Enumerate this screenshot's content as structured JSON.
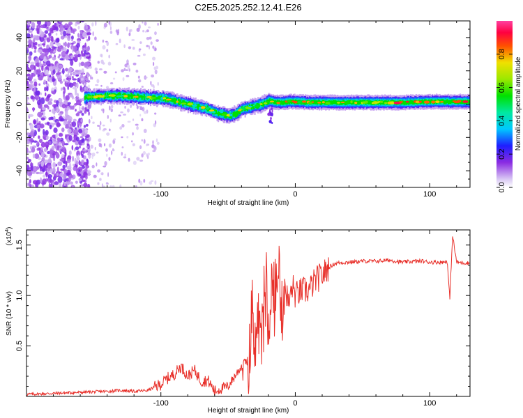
{
  "title": "C2E5.2025.252.12.41.E26",
  "chart_data": [
    {
      "type": "heatmap",
      "name": "spectrogram",
      "title": "C2E5.2025.252.12.41.E26",
      "xlabel": "Height of straight line (km)",
      "ylabel": "Frequency (Hz)",
      "xlim": [
        -200,
        130
      ],
      "ylim": [
        -50,
        50
      ],
      "x_ticks": [
        -100,
        0,
        100
      ],
      "x_tick_labels": [
        "-100",
        "0",
        "100"
      ],
      "y_ticks": [
        -40,
        -20,
        0,
        20,
        40
      ],
      "y_tick_labels": [
        "-40",
        "-20",
        "0",
        "20",
        "40"
      ],
      "signal_start_x": -157,
      "ridge": {
        "x": [
          -157,
          -150,
          -140,
          -130,
          -120,
          -110,
          -100,
          -95,
          -90,
          -85,
          -80,
          -75,
          -70,
          -65,
          -60,
          -55,
          -50,
          -45,
          -40,
          -35,
          -30,
          -25,
          -22,
          -20,
          -15,
          -10,
          -5,
          0,
          10,
          20,
          40,
          60,
          80,
          100,
          115,
          130
        ],
        "freq": [
          4,
          4.5,
          5,
          5,
          4.5,
          4,
          3.5,
          3,
          2,
          1,
          0,
          -1,
          -2,
          -3,
          -5,
          -6,
          -7,
          -6,
          -3,
          -2,
          -1,
          0,
          1,
          2,
          1,
          1,
          1.5,
          1.5,
          1,
          1,
          1,
          1,
          1,
          1.5,
          1.5,
          1.5
        ]
      },
      "colorbar": {
        "label": "Normalized spectral amplitude",
        "min": 0.0,
        "max": 1.0,
        "ticks": [
          0.0,
          0.2,
          0.4,
          0.6,
          0.8
        ],
        "tick_labels": [
          "0.0",
          "0.2",
          "0.4",
          "0.6",
          "0.8"
        ]
      }
    },
    {
      "type": "line",
      "name": "snr",
      "xlabel": "Height of straight line (km)",
      "ylabel": "SNR (10 * v/v)",
      "y_multiplier": "(x10",
      "y_multiplier_exp": "4",
      "y_multiplier_close": ")",
      "xlim": [
        -200,
        130
      ],
      "ylim": [
        0,
        1.65
      ],
      "x_ticks": [
        -100,
        0,
        100
      ],
      "x_tick_labels": [
        "-100",
        "0",
        "100"
      ],
      "y_ticks": [
        0.5,
        1.0,
        1.5
      ],
      "y_tick_labels": [
        "0.5",
        "1.0",
        "1.5"
      ],
      "series": [
        {
          "name": "SNR",
          "color": "#e8302a",
          "x": [
            -200,
            -180,
            -160,
            -140,
            -130,
            -120,
            -110,
            -100,
            -95,
            -90,
            -85,
            -80,
            -75,
            -70,
            -65,
            -60,
            -55,
            -50,
            -45,
            -40,
            -35,
            -32,
            -30,
            -28,
            -25,
            -22,
            -20,
            -18,
            -15,
            -12,
            -10,
            -8,
            -5,
            -2,
            0,
            5,
            10,
            15,
            20,
            25,
            30,
            40,
            50,
            60,
            70,
            80,
            90,
            95,
            100,
            110,
            113,
            115,
            117,
            120,
            130
          ],
          "y": [
            0.02,
            0.03,
            0.04,
            0.05,
            0.06,
            0.05,
            0.06,
            0.12,
            0.18,
            0.22,
            0.3,
            0.2,
            0.26,
            0.15,
            0.16,
            0.05,
            0.08,
            0.1,
            0.2,
            0.3,
            0.35,
            0.6,
            0.45,
            0.8,
            0.5,
            1.0,
            0.7,
            1.1,
            0.9,
            1.3,
            0.8,
            1.15,
            0.9,
            1.1,
            1.0,
            1.05,
            1.05,
            1.15,
            1.2,
            1.28,
            1.32,
            1.33,
            1.34,
            1.34,
            1.35,
            1.33,
            1.34,
            1.34,
            1.33,
            1.33,
            1.34,
            0.97,
            1.6,
            1.33,
            1.32
          ]
        }
      ]
    }
  ]
}
